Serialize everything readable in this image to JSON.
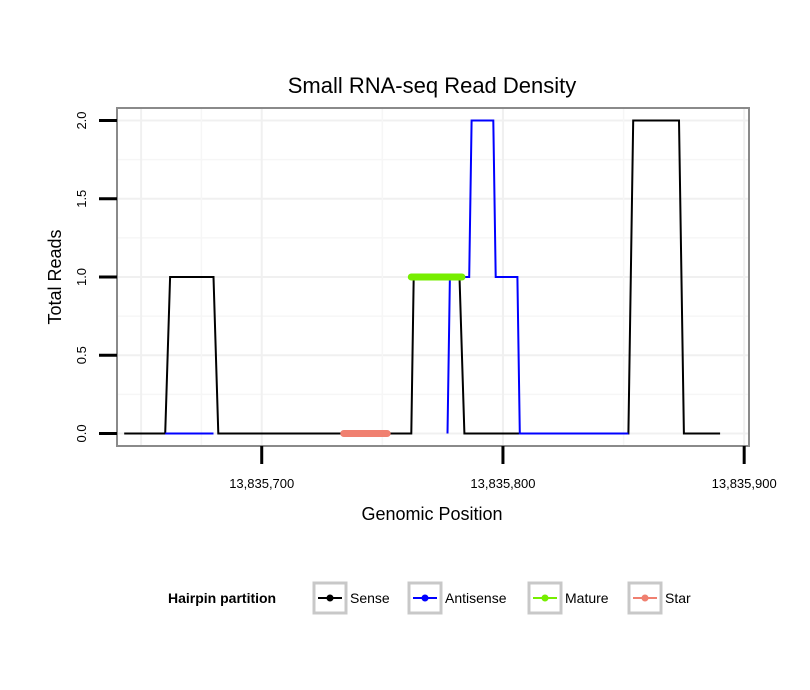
{
  "chart_data": {
    "type": "line",
    "title": "Small RNA-seq Read Density",
    "xlabel": "Genomic Position",
    "ylabel": "Total Reads",
    "xlim": [
      13835640,
      13835902
    ],
    "ylim": [
      -0.08,
      2.08
    ],
    "xticks": [
      13835700,
      13835800,
      13835900
    ],
    "xtick_labels": [
      "13,835,700",
      "13,835,800",
      "13,835,900"
    ],
    "yticks": [
      0,
      0.5,
      1,
      1.5,
      2
    ],
    "ytick_labels": [
      "0.0",
      "0.5",
      "1.0",
      "1.5",
      "2.0"
    ],
    "grid": true,
    "legend_title": "Hairpin partition",
    "legend_position": "bottom",
    "series": [
      {
        "name": "Sense",
        "color": "#000000",
        "style": "line",
        "x": [
          13835643,
          13835660,
          13835662,
          13835680,
          13835682,
          13835762,
          13835763,
          13835782,
          13835784,
          13835852,
          13835854,
          13835873,
          13835875,
          13835890
        ],
        "y": [
          0,
          0,
          1,
          1,
          0,
          0,
          1,
          1,
          0,
          0,
          2,
          2,
          0,
          0
        ]
      },
      {
        "name": "Antisense",
        "color": "#0000ff",
        "style": "line",
        "x": [
          13835660,
          13835680,
          13835681,
          13835777,
          13835778,
          13835786,
          13835787,
          13835796,
          13835797,
          13835806,
          13835807,
          13835852,
          13835853,
          13835873
        ],
        "y": [
          0,
          0,
          null,
          0,
          1,
          1,
          2,
          2,
          1,
          1,
          0,
          0,
          null,
          0
        ]
      },
      {
        "name": "Mature",
        "color": "#76ee00",
        "style": "segment",
        "x": [
          13835762,
          13835783
        ],
        "y": [
          1,
          1
        ]
      },
      {
        "name": "Star",
        "color": "#f08070",
        "style": "segment",
        "x": [
          13835734,
          13835752
        ],
        "y": [
          0,
          0
        ]
      }
    ]
  }
}
